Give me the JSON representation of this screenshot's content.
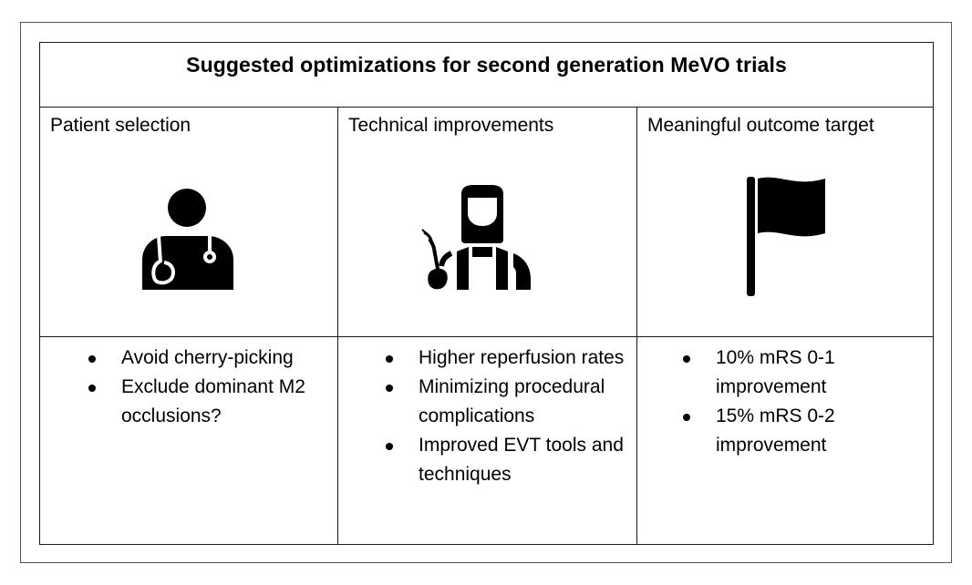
{
  "title": "Suggested optimizations for second generation MeVO trials",
  "columns": [
    {
      "heading": "Patient selection",
      "icon": "doctor-stethoscope-icon",
      "bullets": [
        "Avoid cherry-picking",
        "Exclude dominant M2 occlusions?"
      ]
    },
    {
      "heading": "Technical improvements",
      "icon": "welder-icon",
      "bullets": [
        "Higher reperfusion rates",
        "Minimizing procedural complications",
        "Improved EVT tools and techniques"
      ]
    },
    {
      "heading": "Meaningful outcome target",
      "icon": "flag-icon",
      "bullets": [
        "10% mRS 0-1 improvement",
        "15% mRS 0-2 improvement"
      ]
    }
  ]
}
